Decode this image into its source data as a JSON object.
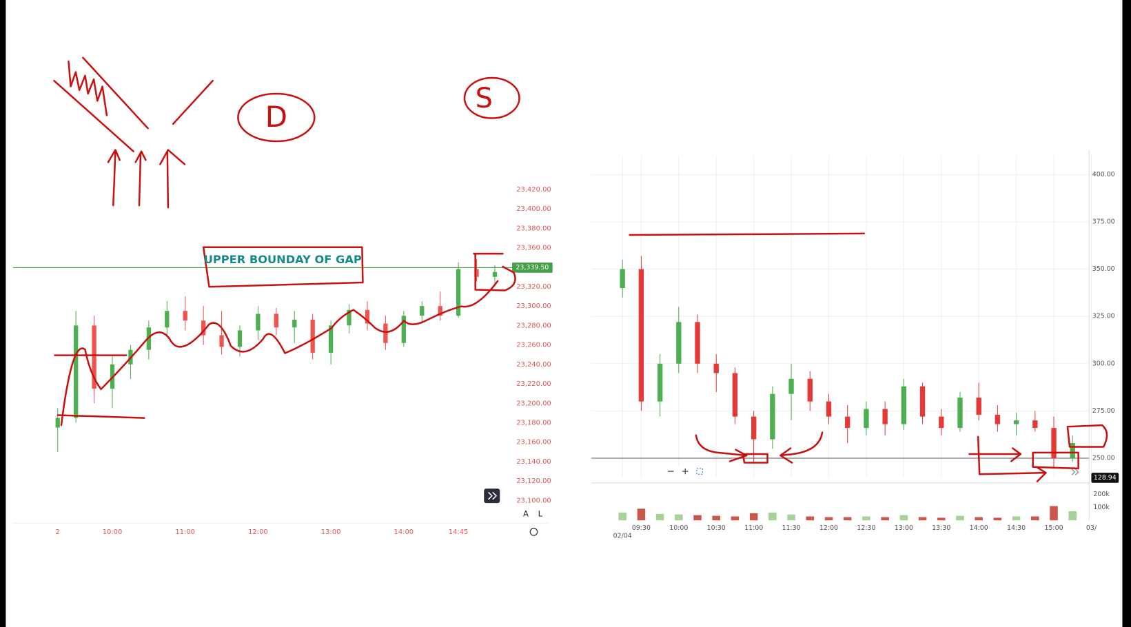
{
  "chart_data": [
    {
      "type": "candlestick",
      "x": [
        "09:15",
        "09:30",
        "09:45",
        "10:00",
        "10:15",
        "10:30",
        "10:45",
        "11:00",
        "11:15",
        "11:30",
        "11:45",
        "12:00",
        "12:15",
        "12:30",
        "12:45",
        "13:00",
        "13:15",
        "13:30",
        "13:45",
        "14:00",
        "14:15",
        "14:30",
        "14:45",
        "15:00",
        "15:15"
      ],
      "open": [
        23175,
        23185,
        23280,
        23215,
        23240,
        23255,
        23278,
        23295,
        23285,
        23270,
        23258,
        23275,
        23292,
        23278,
        23286,
        23252,
        23280,
        23296,
        23282,
        23262,
        23290,
        23300,
        23290,
        23338,
        23330
      ],
      "high": [
        23195,
        23295,
        23290,
        23250,
        23260,
        23285,
        23305,
        23310,
        23300,
        23295,
        23280,
        23300,
        23298,
        23295,
        23292,
        23285,
        23302,
        23305,
        23290,
        23295,
        23305,
        23315,
        23345,
        23348,
        23342
      ],
      "low": [
        23150,
        23180,
        23200,
        23195,
        23225,
        23245,
        23270,
        23275,
        23260,
        23250,
        23248,
        23265,
        23270,
        23262,
        23245,
        23240,
        23272,
        23275,
        23255,
        23258,
        23282,
        23285,
        23288,
        23325,
        23322
      ],
      "close": [
        23185,
        23280,
        23215,
        23240,
        23255,
        23278,
        23295,
        23285,
        23270,
        23258,
        23275,
        23292,
        23278,
        23286,
        23252,
        23280,
        23296,
        23282,
        23262,
        23290,
        23300,
        23290,
        23338,
        23330,
        23335
      ],
      "up_color": "#4caf50",
      "down_color": "#ef5350",
      "ylim": [
        23090,
        23445
      ],
      "yticks": [
        {
          "value": 23100,
          "label": "23,100.00"
        },
        {
          "value": 23120,
          "label": "23,120.00"
        },
        {
          "value": 23140,
          "label": "23,140.00"
        },
        {
          "value": 23160,
          "label": "23,160.00"
        },
        {
          "value": 23180,
          "label": "23,180.00"
        },
        {
          "value": 23200,
          "label": "23,200.00"
        },
        {
          "value": 23220,
          "label": "23,220.00"
        },
        {
          "value": 23240,
          "label": "23,240.00"
        },
        {
          "value": 23260,
          "label": "23,260.00"
        },
        {
          "value": 23280,
          "label": "23,280.00"
        },
        {
          "value": 23300,
          "label": "23,300.00"
        },
        {
          "value": 23320,
          "label": "23,320.00"
        },
        {
          "value": 23340,
          "label": "23,340.00"
        },
        {
          "value": 23360,
          "label": "23,360.00"
        },
        {
          "value": 23380,
          "label": "23,380.00"
        },
        {
          "value": 23400,
          "label": "23,400.00"
        },
        {
          "value": 23420,
          "label": "23,420.00"
        }
      ],
      "xticks": [
        {
          "value": "09:15",
          "label": "2"
        },
        "10:00",
        "11:00",
        "12:00",
        "13:00",
        "14:00",
        "14:45"
      ],
      "grid": false,
      "last_price": 23339.5,
      "last_price_label": "23,339.50",
      "last_price_color": "#43a047",
      "annotation": "UPPER BOUNDAY OF GAP",
      "buttons": [
        "A",
        "L"
      ]
    },
    {
      "type": "candlestick",
      "x": [
        "09:15",
        "09:30",
        "09:45",
        "10:00",
        "10:15",
        "10:30",
        "10:45",
        "11:00",
        "11:15",
        "11:30",
        "11:45",
        "12:00",
        "12:15",
        "12:30",
        "12:45",
        "13:00",
        "13:15",
        "13:30",
        "13:45",
        "14:00",
        "14:15",
        "14:30",
        "14:45",
        "15:00",
        "15:15"
      ],
      "open": [
        340,
        350,
        280,
        300,
        322,
        300,
        295,
        272,
        260,
        284,
        292,
        280,
        272,
        266,
        276,
        268,
        288,
        272,
        266,
        282,
        273,
        268,
        270,
        266,
        250
      ],
      "high": [
        355,
        357,
        305,
        330,
        326,
        305,
        298,
        275,
        288,
        300,
        296,
        284,
        278,
        280,
        280,
        292,
        290,
        276,
        285,
        290,
        278,
        274,
        275,
        272,
        262
      ],
      "low": [
        335,
        275,
        272,
        295,
        295,
        285,
        268,
        248,
        255,
        270,
        275,
        268,
        258,
        262,
        262,
        265,
        268,
        262,
        264,
        270,
        264,
        262,
        264,
        245,
        248
      ],
      "close": [
        350,
        280,
        300,
        322,
        300,
        295,
        272,
        260,
        284,
        292,
        280,
        272,
        266,
        276,
        268,
        288,
        272,
        266,
        282,
        273,
        268,
        270,
        266,
        250,
        258
      ],
      "volume": [
        60000,
        90000,
        50000,
        45000,
        40000,
        35000,
        30000,
        55000,
        60000,
        45000,
        30000,
        25000,
        25000,
        30000,
        25000,
        40000,
        25000,
        20000,
        35000,
        25000,
        20000,
        30000,
        30000,
        110000,
        70000
      ],
      "up_color": "#4caf50",
      "down_color": "#e53935",
      "ylim": [
        240,
        410
      ],
      "yticks": [
        {
          "value": 250,
          "label": "250.00"
        },
        {
          "value": 275,
          "label": "275.00"
        },
        {
          "value": 300,
          "label": "300.00"
        },
        {
          "value": 325,
          "label": "325.00"
        },
        {
          "value": 350,
          "label": "350.00"
        },
        {
          "value": 375,
          "label": "375.00"
        },
        {
          "value": 400,
          "label": "400.00"
        }
      ],
      "xticks": [
        {
          "value": "09:15",
          "label": "02/04"
        },
        "09:30",
        "10:00",
        "10:30",
        "11:00",
        "11:30",
        "12:00",
        "12:30",
        "13:00",
        "13:30",
        "14:00",
        "14:30",
        "15:00",
        {
          "value": "15:30",
          "label": "03/"
        }
      ],
      "volume_ylim": [
        0,
        250000
      ],
      "volume_ticks": [
        {
          "value": 100000,
          "label": "100k"
        },
        {
          "value": 200000,
          "label": "200k"
        }
      ],
      "grid": true,
      "reference_line": 250,
      "price_label": "128.94"
    }
  ],
  "notes": {
    "letter_d": "D",
    "letter_s": "S"
  }
}
